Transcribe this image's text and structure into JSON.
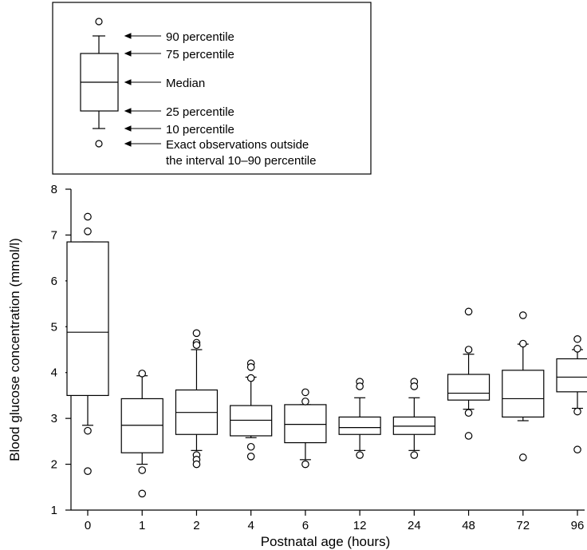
{
  "chart_data": {
    "type": "box",
    "xlabel": "Postnatal age (hours)",
    "ylabel": "Blood glucose concentration (mmol/l)",
    "ylim": [
      1,
      8
    ],
    "yticks": [
      1,
      2,
      3,
      4,
      5,
      6,
      7,
      8
    ],
    "categories": [
      "0",
      "1",
      "2",
      "4",
      "6",
      "12",
      "24",
      "48",
      "72",
      "96"
    ],
    "boxes": [
      {
        "p10": 2.85,
        "p25": 3.5,
        "median": 4.88,
        "p75": 6.85,
        "p90": 6.85,
        "outliers": [
          7.4,
          7.08,
          2.73,
          1.85
        ]
      },
      {
        "p10": 2.0,
        "p25": 2.25,
        "median": 2.85,
        "p75": 3.43,
        "p90": 3.93,
        "outliers": [
          3.98,
          1.87,
          1.36
        ]
      },
      {
        "p10": 2.3,
        "p25": 2.65,
        "median": 3.13,
        "p75": 3.62,
        "p90": 4.5,
        "outliers": [
          4.86,
          4.65,
          4.6,
          2.2,
          2.1,
          2.0
        ]
      },
      {
        "p10": 2.58,
        "p25": 2.62,
        "median": 2.96,
        "p75": 3.28,
        "p90": 3.9,
        "outliers": [
          4.2,
          4.12,
          3.88,
          2.38,
          2.17
        ]
      },
      {
        "p10": 2.1,
        "p25": 2.47,
        "median": 2.87,
        "p75": 3.3,
        "p90": 3.3,
        "outliers": [
          3.57,
          3.37,
          2.0
        ]
      },
      {
        "p10": 2.3,
        "p25": 2.65,
        "median": 2.8,
        "p75": 3.03,
        "p90": 3.45,
        "outliers": [
          3.8,
          3.7,
          2.2
        ]
      },
      {
        "p10": 2.3,
        "p25": 2.65,
        "median": 2.83,
        "p75": 3.03,
        "p90": 3.45,
        "outliers": [
          3.8,
          3.7,
          2.2
        ]
      },
      {
        "p10": 3.2,
        "p25": 3.4,
        "median": 3.55,
        "p75": 3.96,
        "p90": 4.4,
        "outliers": [
          5.33,
          4.5,
          3.12,
          2.62
        ]
      },
      {
        "p10": 2.95,
        "p25": 3.03,
        "median": 3.43,
        "p75": 4.05,
        "p90": 4.62,
        "outliers": [
          5.25,
          4.63,
          2.15
        ]
      },
      {
        "p10": 3.22,
        "p25": 3.58,
        "median": 3.9,
        "p75": 4.3,
        "p90": 4.5,
        "outliers": [
          4.73,
          4.52,
          3.15,
          2.32
        ]
      }
    ]
  },
  "legend": {
    "p90": "90 percentile",
    "p75": "75 percentile",
    "median": "Median",
    "p25": "25 percentile",
    "p10": "10 percentile",
    "outside_line1": "Exact observations outside",
    "outside_line2": "the interval 10–90 percentile"
  },
  "colors": {
    "stroke": "#000000",
    "background": "#ffffff"
  }
}
